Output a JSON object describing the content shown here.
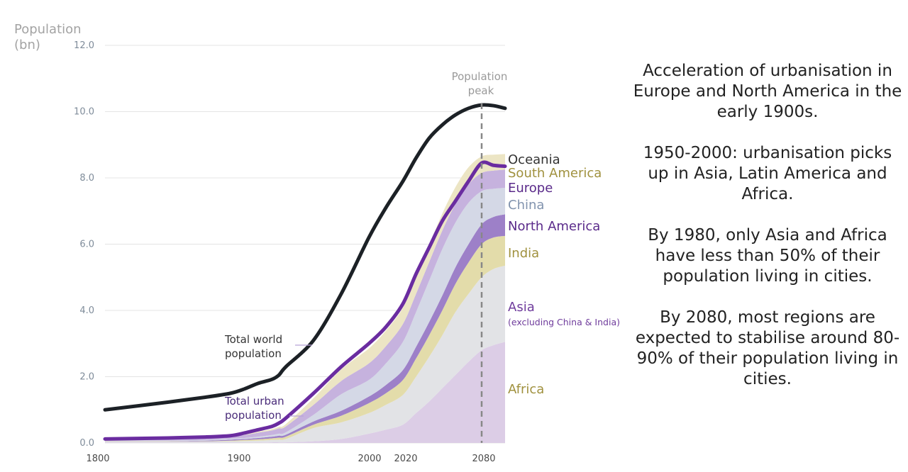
{
  "chart_data": {
    "type": "area",
    "title": "",
    "xlabel": "",
    "ylabel": "Population (bn)",
    "ylabel_lines": [
      "Population",
      "(bn)"
    ],
    "xlim": [
      1800,
      2100
    ],
    "ylim": [
      0,
      12
    ],
    "y_ticks": [
      0,
      2,
      4,
      6,
      8,
      10,
      12
    ],
    "y_tick_labels": [
      "0.0",
      "2.0",
      "4.0",
      "6.0",
      "8.0",
      "10.0",
      "12.0"
    ],
    "x_ticks": [
      1800,
      1900,
      2000,
      2020,
      2080
    ],
    "x_tick_labels": [
      "1800",
      "1900",
      "2000",
      "2020",
      "2080"
    ],
    "grid": true,
    "stack_order": [
      "Africa",
      "Asia",
      "India",
      "North America",
      "China",
      "Europe",
      "South America",
      "Oceania"
    ],
    "x": [
      1800,
      1850,
      1880,
      1900,
      1910,
      1920,
      1930,
      1935,
      1940,
      1960,
      1980,
      2000,
      2010,
      2020,
      2030,
      2040,
      2050,
      2060,
      2070,
      2080,
      2090,
      2100
    ],
    "series": [
      {
        "name": "Total world population",
        "color": "#1c2126",
        "values": [
          1.0,
          1.23,
          1.38,
          1.5,
          1.63,
          1.8,
          1.92,
          2.05,
          2.3,
          3.1,
          4.5,
          6.2,
          7.1,
          7.9,
          8.6,
          9.2,
          9.6,
          9.9,
          10.1,
          10.2,
          10.18,
          10.1
        ]
      },
      {
        "name": "Total urban population",
        "color": "#6a2ca0",
        "values": [
          0.12,
          0.15,
          0.18,
          0.22,
          0.3,
          0.4,
          0.5,
          0.6,
          0.75,
          1.5,
          2.3,
          3.0,
          3.5,
          4.2,
          5.1,
          5.9,
          6.7,
          7.3,
          7.9,
          8.45,
          8.38,
          8.35
        ]
      },
      {
        "name": "Africa",
        "color": "#dccde6",
        "values": [
          0.01,
          0.01,
          0.01,
          0.01,
          0.01,
          0.01,
          0.02,
          0.02,
          0.02,
          0.05,
          0.12,
          0.28,
          0.4,
          0.55,
          0.9,
          1.25,
          1.65,
          2.05,
          2.45,
          2.8,
          2.95,
          3.05
        ]
      },
      {
        "name": "Asia (excluding China & India)",
        "color": "#e2e3e6",
        "values": [
          0.03,
          0.03,
          0.03,
          0.04,
          0.05,
          0.06,
          0.07,
          0.08,
          0.1,
          0.4,
          0.5,
          0.62,
          0.75,
          0.9,
          1.1,
          1.35,
          1.6,
          1.9,
          2.05,
          2.2,
          2.3,
          2.3
        ]
      },
      {
        "name": "India",
        "color": "#e3dcaa",
        "values": [
          0.01,
          0.01,
          0.01,
          0.02,
          0.03,
          0.04,
          0.05,
          0.06,
          0.07,
          0.1,
          0.2,
          0.3,
          0.35,
          0.45,
          0.55,
          0.65,
          0.75,
          0.85,
          0.95,
          1.0,
          0.95,
          0.9
        ]
      },
      {
        "name": "North America",
        "color": "#9d80c8",
        "values": [
          0.01,
          0.01,
          0.02,
          0.03,
          0.03,
          0.04,
          0.05,
          0.06,
          0.06,
          0.1,
          0.15,
          0.2,
          0.25,
          0.3,
          0.35,
          0.4,
          0.45,
          0.5,
          0.55,
          0.6,
          0.62,
          0.65
        ]
      },
      {
        "name": "China",
        "color": "#d4d8e6",
        "values": [
          0.02,
          0.02,
          0.02,
          0.03,
          0.03,
          0.04,
          0.05,
          0.06,
          0.07,
          0.2,
          0.5,
          0.5,
          0.65,
          0.85,
          1.05,
          1.25,
          1.4,
          1.35,
          1.25,
          1.0,
          0.85,
          0.8
        ]
      },
      {
        "name": "Europe",
        "color": "#c6b2de",
        "values": [
          0.02,
          0.04,
          0.06,
          0.07,
          0.09,
          0.12,
          0.14,
          0.16,
          0.18,
          0.3,
          0.4,
          0.5,
          0.52,
          0.54,
          0.55,
          0.56,
          0.56,
          0.56,
          0.56,
          0.55,
          0.55,
          0.55
        ]
      },
      {
        "name": "South America",
        "color": "#ece5c4",
        "values": [
          0.0,
          0.01,
          0.01,
          0.01,
          0.02,
          0.03,
          0.04,
          0.05,
          0.07,
          0.2,
          0.35,
          0.45,
          0.47,
          0.49,
          0.5,
          0.51,
          0.51,
          0.51,
          0.51,
          0.5,
          0.48,
          0.47
        ]
      },
      {
        "name": "Oceania",
        "color": "#6a2ca0",
        "values": [
          0.0,
          0.0,
          0.0,
          0.0,
          0.0,
          0.0,
          0.0,
          0.0,
          0.01,
          0.02,
          0.03,
          0.04,
          0.04,
          0.04,
          0.05,
          0.05,
          0.05,
          0.05,
          0.05,
          0.05,
          0.05,
          0.05
        ]
      }
    ],
    "peak_line": {
      "x": 2080,
      "label_lines": [
        "Population",
        "peak"
      ]
    },
    "annotations": {
      "world_lines": [
        "Total world",
        "population"
      ],
      "urban_lines": [
        "Total urban",
        "population"
      ]
    },
    "region_labels": [
      {
        "name": "Oceania",
        "color": "#333333"
      },
      {
        "name": "South America",
        "color": "#a0913e"
      },
      {
        "name": "Europe",
        "color": "#5a2a8a"
      },
      {
        "name": "China",
        "color": "#8193ae"
      },
      {
        "name": "North America",
        "color": "#5a2a8a"
      },
      {
        "name": "India",
        "color": "#a0913e"
      },
      {
        "name": "Asia",
        "sub": "(excluding China & India)",
        "color": "#6f3c9c"
      },
      {
        "name": "Africa",
        "color": "#a0913e"
      }
    ]
  },
  "notes": [
    "Acceleration of urbanisation in Europe and North America in the early 1900s.",
    "1950-2000: urbanisation picks up in Asia, Latin America and Africa.",
    "By 1980, only Asia and Africa have less than 50% of their population living in cities.",
    "By 2080, most regions are expected to stabilise around 80-90% of their population living in cities."
  ]
}
